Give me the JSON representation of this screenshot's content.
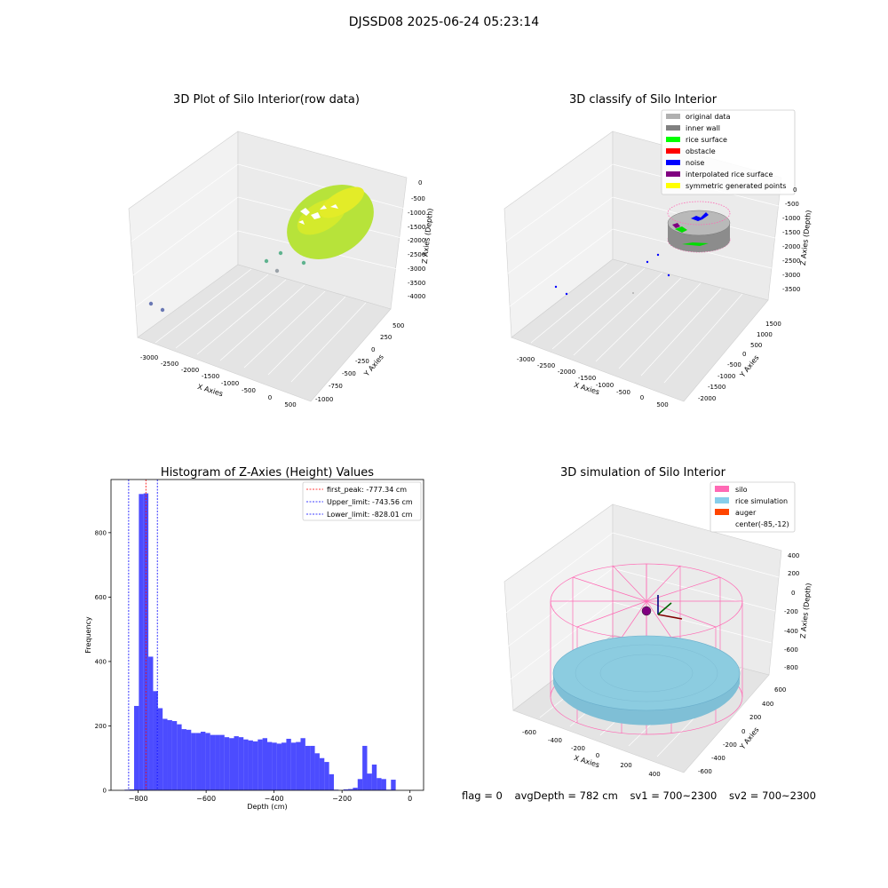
{
  "figure": {
    "suptitle": "DJSSD08 2025-06-24 05:23:14",
    "footer": {
      "flag": "flag = 0",
      "avg_depth": "avgDepth = 782 cm",
      "sv1": "sv1 = 700~2300",
      "sv2": "sv2 = 700~2300"
    }
  },
  "panels": {
    "raw": {
      "title": "3D Plot of Silo Interior(row data)",
      "xlabel": "X Axies",
      "ylabel": "Y Axies",
      "zlabel": "Z Axies (Depth)",
      "xticks": [
        "-3000",
        "-2500",
        "-2000",
        "-1500",
        "-1000",
        "-500",
        "0",
        "500"
      ],
      "yticks": [
        "500",
        "250",
        "0",
        "-250",
        "-500",
        "-750",
        "-1000"
      ],
      "zticks": [
        "0",
        "-500",
        "-1000",
        "-1500",
        "-2000",
        "-2500",
        "-3000",
        "-3500",
        "-4000"
      ]
    },
    "classify": {
      "title": "3D classify of Silo Interior",
      "xlabel": "X Axies",
      "ylabel": "Y Axies",
      "zlabel": "Z Axies (Depth)",
      "xticks": [
        "-3000",
        "-2500",
        "-2000",
        "-1500",
        "-1000",
        "-500",
        "0",
        "500"
      ],
      "yticks": [
        "1500",
        "1000",
        "500",
        "0",
        "-500",
        "-1000",
        "-1500",
        "-2000"
      ],
      "zticks": [
        "0",
        "-500",
        "-1000",
        "-1500",
        "-2000",
        "-2500",
        "-3000",
        "-3500"
      ],
      "legend": [
        {
          "label": "original data",
          "color": "#b0b0b0"
        },
        {
          "label": "inner wall",
          "color": "#808080"
        },
        {
          "label": "rice surface",
          "color": "#00ff00"
        },
        {
          "label": "obstacle",
          "color": "#ff0000"
        },
        {
          "label": "noise",
          "color": "#0000ff"
        },
        {
          "label": "interpolated rice surface",
          "color": "#800080"
        },
        {
          "label": "symmetric generated points",
          "color": "#ffff00"
        }
      ]
    },
    "simulation": {
      "title": "3D simulation of Silo Interior",
      "xlabel": "X Axies",
      "ylabel": "Y Axies",
      "zlabel": "Z Axies (Depth)",
      "xticks": [
        "-600",
        "-400",
        "-200",
        "0",
        "200",
        "400"
      ],
      "yticks": [
        "600",
        "400",
        "200",
        "0",
        "-200",
        "-400",
        "-600"
      ],
      "zticks": [
        "400",
        "200",
        "0",
        "-200",
        "-400",
        "-600",
        "-800"
      ],
      "legend": [
        {
          "label": "silo",
          "color": "#ff69b4"
        },
        {
          "label": "rice simulation",
          "color": "#87ceeb"
        },
        {
          "label": "auger",
          "color": "#ff4500"
        },
        {
          "label": "center(-85,-12)",
          "color": ""
        }
      ]
    }
  },
  "chart_data": {
    "type": "bar",
    "title": "Histogram of Z-Axies (Height) Values",
    "xlabel": "Depth (cm)",
    "ylabel": "Frequency",
    "xlim": [
      -880,
      40
    ],
    "ylim": [
      0,
      965
    ],
    "xticks": [
      -800,
      -600,
      -400,
      -200,
      0
    ],
    "yticks": [
      0,
      200,
      400,
      600,
      800
    ],
    "bar_color": "#0000ff",
    "bins": [
      {
        "x": -840,
        "value": 2
      },
      {
        "x": -826,
        "value": 3
      },
      {
        "x": -812,
        "value": 262
      },
      {
        "x": -798,
        "value": 920
      },
      {
        "x": -784,
        "value": 922
      },
      {
        "x": -770,
        "value": 415
      },
      {
        "x": -756,
        "value": 308
      },
      {
        "x": -742,
        "value": 255
      },
      {
        "x": -728,
        "value": 222
      },
      {
        "x": -714,
        "value": 218
      },
      {
        "x": -700,
        "value": 215
      },
      {
        "x": -686,
        "value": 205
      },
      {
        "x": -672,
        "value": 190
      },
      {
        "x": -658,
        "value": 188
      },
      {
        "x": -644,
        "value": 178
      },
      {
        "x": -630,
        "value": 178
      },
      {
        "x": -616,
        "value": 182
      },
      {
        "x": -602,
        "value": 178
      },
      {
        "x": -588,
        "value": 172
      },
      {
        "x": -574,
        "value": 172
      },
      {
        "x": -560,
        "value": 172
      },
      {
        "x": -546,
        "value": 165
      },
      {
        "x": -532,
        "value": 162
      },
      {
        "x": -518,
        "value": 168
      },
      {
        "x": -504,
        "value": 165
      },
      {
        "x": -490,
        "value": 158
      },
      {
        "x": -476,
        "value": 155
      },
      {
        "x": -462,
        "value": 152
      },
      {
        "x": -448,
        "value": 158
      },
      {
        "x": -434,
        "value": 162
      },
      {
        "x": -420,
        "value": 150
      },
      {
        "x": -406,
        "value": 148
      },
      {
        "x": -392,
        "value": 145
      },
      {
        "x": -378,
        "value": 148
      },
      {
        "x": -364,
        "value": 160
      },
      {
        "x": -350,
        "value": 148
      },
      {
        "x": -336,
        "value": 150
      },
      {
        "x": -322,
        "value": 162
      },
      {
        "x": -308,
        "value": 138
      },
      {
        "x": -294,
        "value": 138
      },
      {
        "x": -280,
        "value": 115
      },
      {
        "x": -266,
        "value": 100
      },
      {
        "x": -252,
        "value": 88
      },
      {
        "x": -238,
        "value": 50
      },
      {
        "x": -224,
        "value": 2
      },
      {
        "x": -210,
        "value": 0
      },
      {
        "x": -196,
        "value": 3
      },
      {
        "x": -182,
        "value": 4
      },
      {
        "x": -168,
        "value": 8
      },
      {
        "x": -154,
        "value": 35
      },
      {
        "x": -140,
        "value": 138
      },
      {
        "x": -126,
        "value": 52
      },
      {
        "x": -112,
        "value": 80
      },
      {
        "x": -98,
        "value": 38
      },
      {
        "x": -84,
        "value": 35
      },
      {
        "x": -70,
        "value": 2
      },
      {
        "x": -56,
        "value": 33
      }
    ],
    "bin_width": 14,
    "vlines": [
      {
        "label": "first_peak: -777.34 cm",
        "x": -777.34,
        "color": "#ff0000"
      },
      {
        "label": "Upper_limit: -743.56 cm",
        "x": -743.56,
        "color": "#0000ff"
      },
      {
        "label": "Lower_limit: -828.01 cm",
        "x": -828.01,
        "color": "#0000ff"
      }
    ]
  }
}
